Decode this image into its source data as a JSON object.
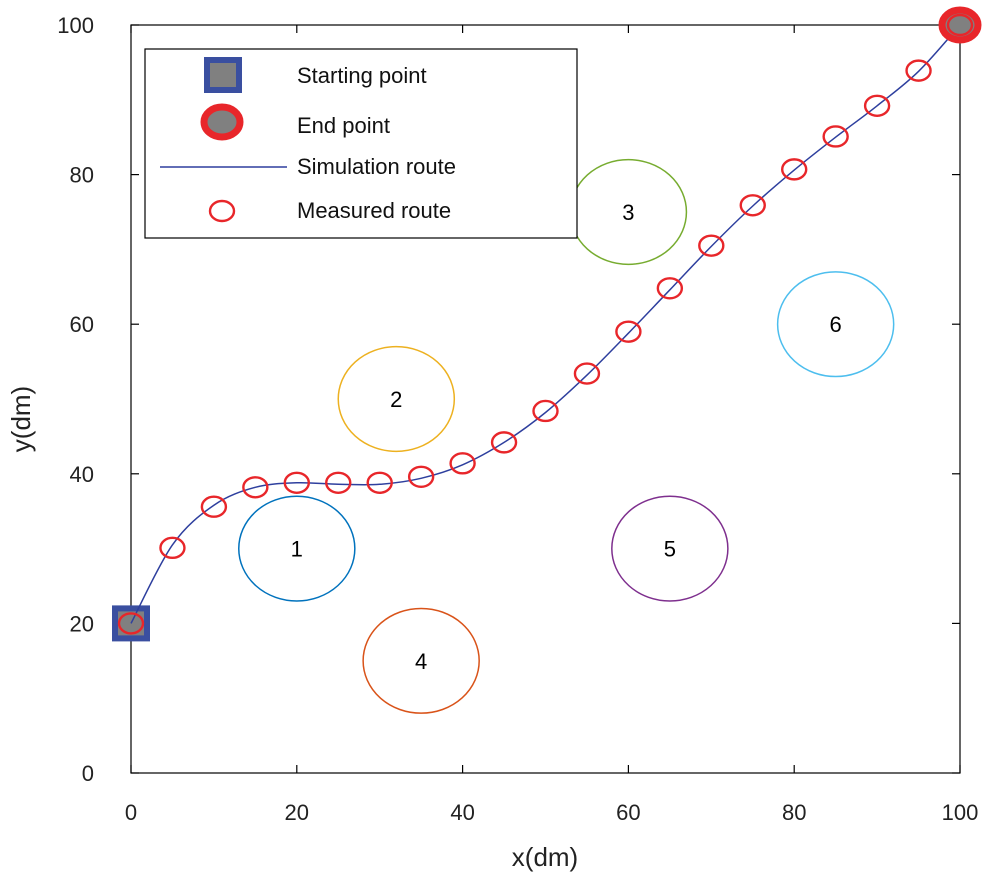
{
  "chart_data": {
    "type": "scatter",
    "xlabel": "x(dm)",
    "ylabel": "y(dm)",
    "xlim": [
      0,
      100
    ],
    "ylim": [
      0,
      100
    ],
    "xticks": [
      0,
      20,
      40,
      60,
      80,
      100
    ],
    "yticks": [
      0,
      20,
      40,
      60,
      80,
      100
    ],
    "grid": false,
    "legend_position": "top-left",
    "legend": [
      {
        "key": "start",
        "label": "Starting point"
      },
      {
        "key": "end",
        "label": "End point"
      },
      {
        "key": "simulation",
        "label": "Simulation route"
      },
      {
        "key": "measured",
        "label": "Measured route"
      }
    ],
    "start_point": {
      "x": 0,
      "y": 20
    },
    "end_point": {
      "x": 100,
      "y": 100
    },
    "simulation_route": {
      "x": [
        0,
        5,
        10,
        15,
        20,
        25,
        30,
        35,
        40,
        45,
        50,
        55,
        60,
        65,
        70,
        75,
        80,
        85,
        90,
        95,
        100
      ],
      "y": [
        20,
        30.5,
        35.8,
        38.2,
        38.8,
        38.6,
        38.6,
        39.4,
        41.2,
        44.2,
        48.2,
        53.2,
        58.8,
        64.6,
        70.4,
        75.8,
        80.6,
        85.0,
        89.2,
        93.8,
        100
      ]
    },
    "measured_route": {
      "x": [
        0,
        5,
        10,
        15,
        20,
        25,
        30,
        35,
        40,
        45,
        50,
        55,
        60,
        65,
        70,
        75,
        80,
        85,
        90,
        95,
        100
      ],
      "y": [
        20,
        30.1,
        35.6,
        38.2,
        38.8,
        38.8,
        38.8,
        39.6,
        41.4,
        44.2,
        48.4,
        53.4,
        59.0,
        64.8,
        70.5,
        75.9,
        80.7,
        85.1,
        89.2,
        93.9,
        100
      ]
    },
    "obstacles": [
      {
        "label": "1",
        "cx": 20,
        "cy": 30,
        "rx": 7,
        "ry": 7,
        "color": "#0072bd"
      },
      {
        "label": "2",
        "cx": 32,
        "cy": 50,
        "rx": 7,
        "ry": 7,
        "color": "#edb120"
      },
      {
        "label": "3",
        "cx": 60,
        "cy": 75,
        "rx": 7,
        "ry": 7,
        "color": "#77ac30"
      },
      {
        "label": "4",
        "cx": 35,
        "cy": 15,
        "rx": 7,
        "ry": 7,
        "color": "#d95319"
      },
      {
        "label": "5",
        "cx": 65,
        "cy": 30,
        "rx": 7,
        "ry": 7,
        "color": "#7e2f8e"
      },
      {
        "label": "6",
        "cx": 85,
        "cy": 60,
        "rx": 7,
        "ry": 7,
        "color": "#4dbeee"
      }
    ],
    "colors": {
      "route_line": "#2e3f9e",
      "measured_marker": "#e8262a",
      "start_fill": "#808080",
      "start_border": "#3a4fa0",
      "end_fill": "#808080",
      "end_border": "#e8262a"
    }
  }
}
